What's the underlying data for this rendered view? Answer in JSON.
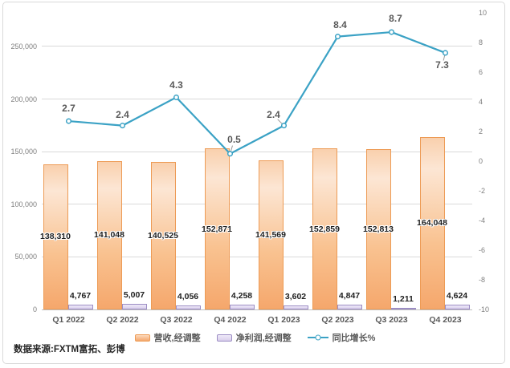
{
  "chart_data": {
    "type": "combo",
    "grid": true,
    "legend_position": "bottom",
    "categories": [
      "Q1 2022",
      "Q2 2022",
      "Q3 2022",
      "Q4 2022",
      "Q1 2023",
      "Q2 2023",
      "Q3 2023",
      "Q4 2023"
    ],
    "series": [
      {
        "name": "营收,经调整",
        "type": "bar",
        "axis": "left",
        "values": [
          138310,
          141048,
          140525,
          152871,
          141569,
          152859,
          152813,
          164048
        ],
        "labels": [
          "138,310",
          "141,048",
          "140,525",
          "152,871",
          "141,569",
          "152,859",
          "152,813",
          "164,048"
        ]
      },
      {
        "name": "净利润,经调整",
        "type": "bar",
        "axis": "left",
        "values": [
          4767,
          5007,
          4056,
          4258,
          3602,
          4847,
          1211,
          4624
        ],
        "labels": [
          "4,767",
          "5,007",
          "4,056",
          "4,258",
          "3,602",
          "4,847",
          "1,211",
          "4,624"
        ]
      },
      {
        "name": "同比增长%",
        "type": "line",
        "axis": "right",
        "values": [
          2.7,
          2.4,
          4.3,
          0.5,
          2.4,
          8.4,
          8.7,
          7.3
        ],
        "labels": [
          "2.7",
          "2.4",
          "4.3",
          "0.5",
          "2.4",
          "8.4",
          "8.7",
          "7.3"
        ],
        "label_offsets": [
          {
            "dx": 0,
            "dy": -15,
            "leader": false
          },
          {
            "dx": 0,
            "dy": -13,
            "leader": false
          },
          {
            "dx": 0,
            "dy": -14,
            "leader": false
          },
          {
            "dx": 5,
            "dy": -17,
            "leader": true
          },
          {
            "dx": -13,
            "dy": -13,
            "leader": true
          },
          {
            "dx": 3,
            "dy": -14,
            "leader": false
          },
          {
            "dx": 5,
            "dy": -16,
            "leader": false
          },
          {
            "dx": -4,
            "dy": 16,
            "leader": true
          }
        ]
      }
    ],
    "left_axis": {
      "tick_labels": [
        "0",
        "50,000",
        "100,000",
        "150,000",
        "200,000",
        "250,000"
      ],
      "tick_values": [
        0,
        50000,
        100000,
        150000,
        200000,
        250000
      ],
      "range_top": 282000
    },
    "right_axis": {
      "tick_labels": [
        "10",
        "8",
        "6",
        "4",
        "2",
        "0",
        "-2",
        "-4",
        "-6",
        "-8",
        "-10"
      ],
      "tick_values": [
        10,
        8,
        6,
        4,
        2,
        0,
        -2,
        -4,
        -6,
        -8,
        -10
      ],
      "min": -10,
      "max": 10
    }
  },
  "source": {
    "text": "数据来源:FXTM富拓、彭博"
  },
  "colors": {
    "line": "#3ba2c5",
    "revenue_border": "#ed9b55",
    "revenue_fill_top": "#f9d0ad",
    "revenue_fill_bottom": "#f5a76c",
    "profit_border": "#9c8dc4",
    "profit_fill": "#e2dbf2",
    "grid": "#d9d9d9",
    "axis_line": "#bfbfbf",
    "frame_border": "#d9d9d9",
    "value_label": "#1f1f1f",
    "axis_text": "#7f7f7f",
    "label_gray": "#595959"
  }
}
